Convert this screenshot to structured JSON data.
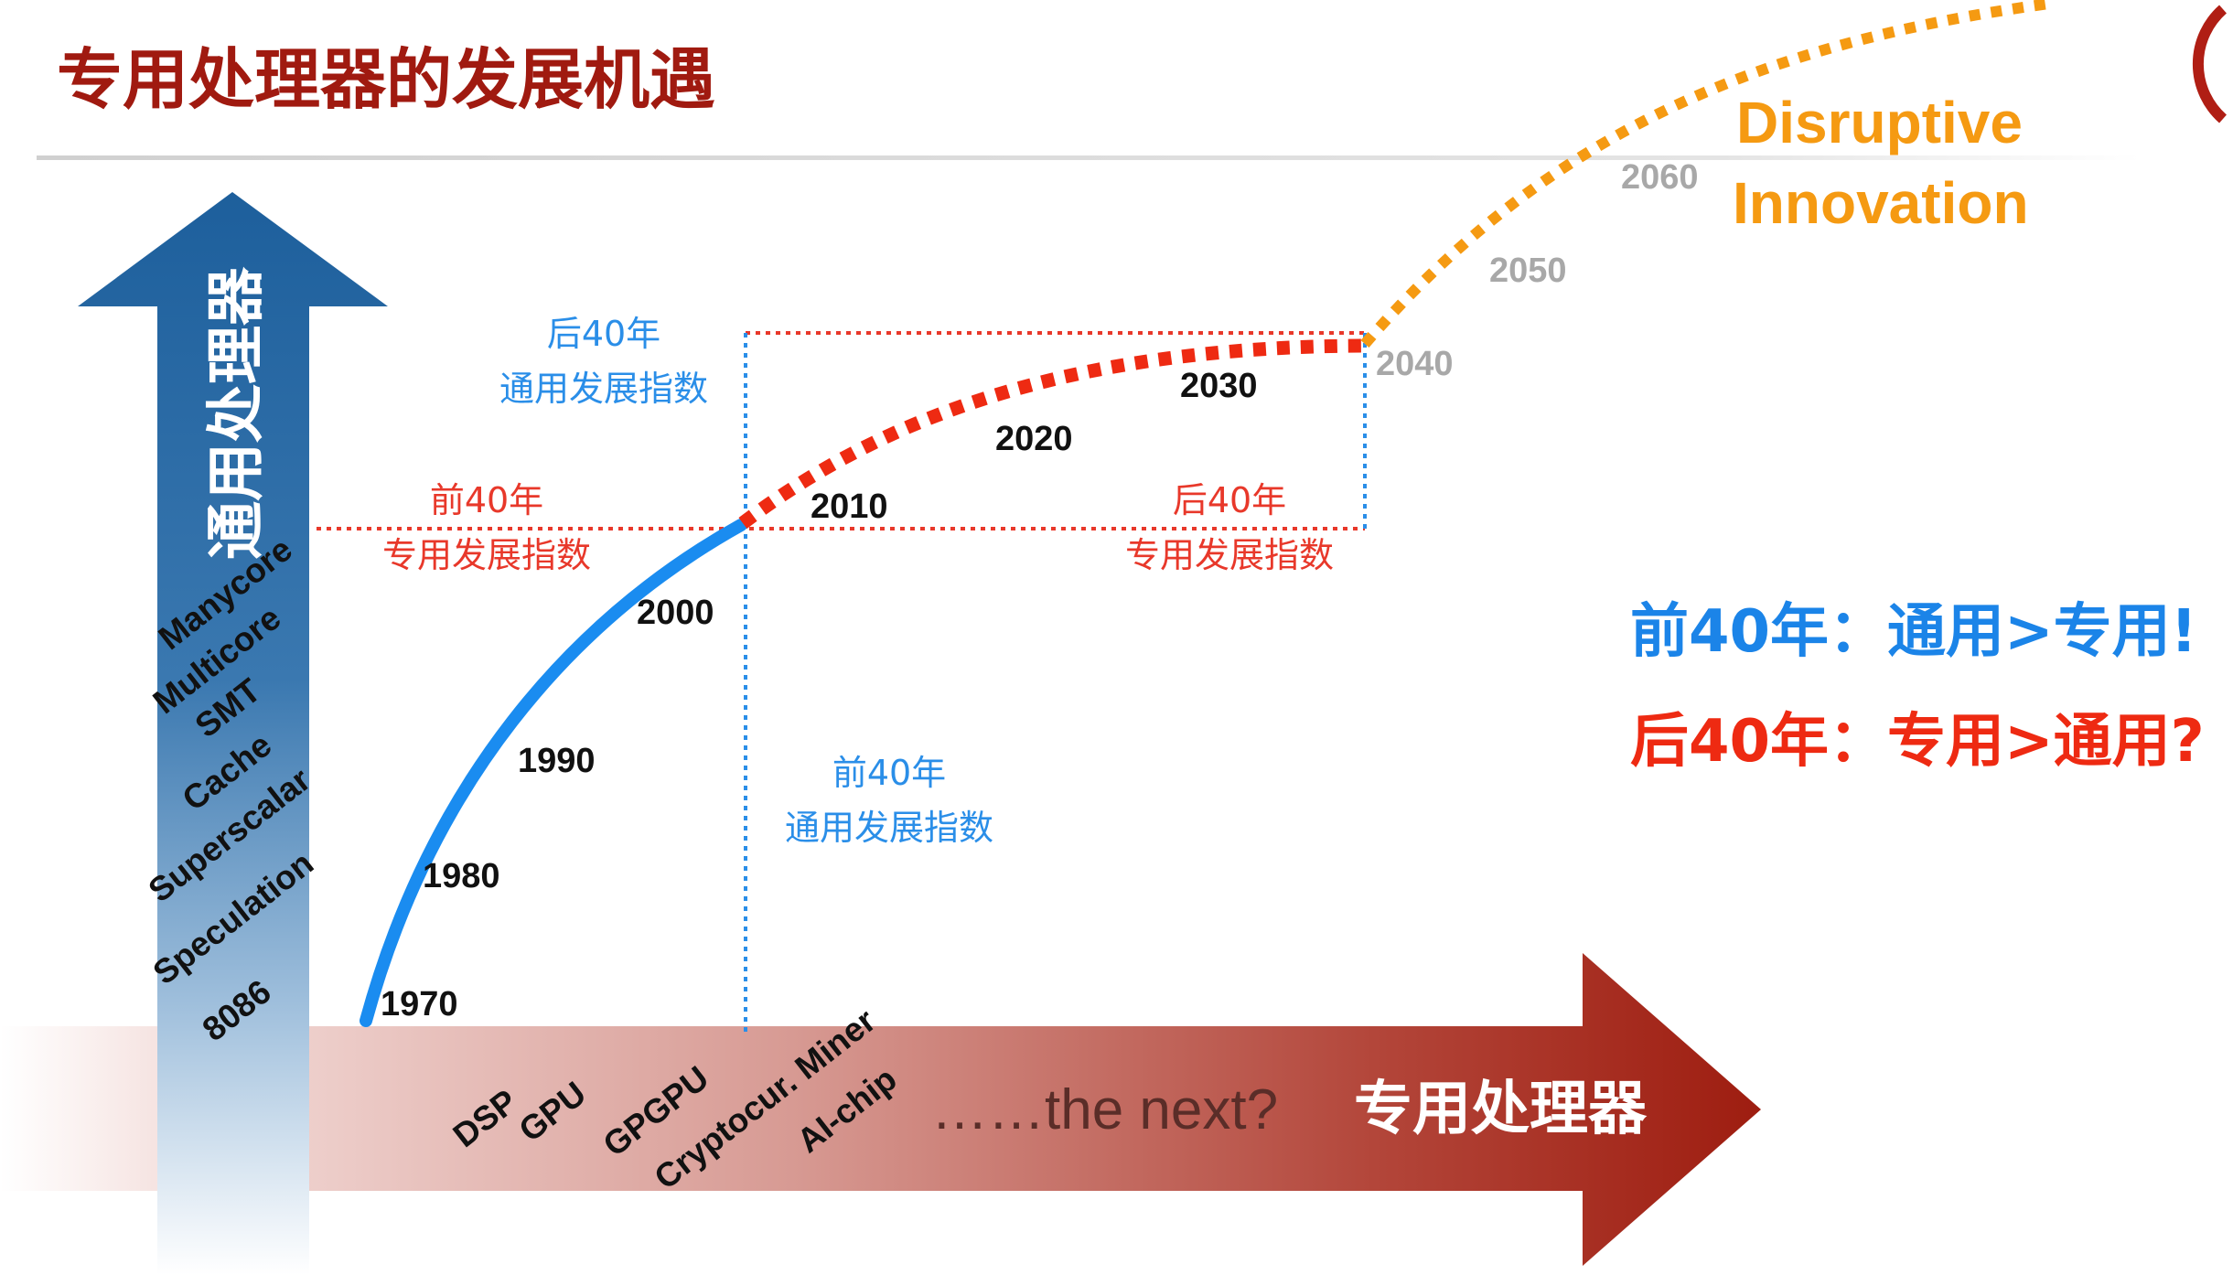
{
  "title": "专用处理器的发展机遇",
  "vertical_axis": {
    "label": "通用处理器",
    "items": [
      "Manycore",
      "Multicore",
      "SMT",
      "Cache",
      "Superscalar",
      "Speculation",
      "8086"
    ]
  },
  "horizontal_axis": {
    "label": "专用处理器",
    "items": [
      "DSP",
      "GPU",
      "GPGPU",
      "Cryptocur. Miner",
      "AI-chip"
    ],
    "next_text": "……the next?"
  },
  "timeline": {
    "past_years": [
      "1970",
      "1980",
      "1990",
      "2000"
    ],
    "middle_years": [
      "2010",
      "2020",
      "2030"
    ],
    "future_years": [
      "2040",
      "2050",
      "2060"
    ]
  },
  "annotations": {
    "upper_general": [
      "后40年",
      "通用发展指数"
    ],
    "left_special": [
      "前40年",
      "专用发展指数"
    ],
    "right_special": [
      "后40年",
      "专用发展指数"
    ],
    "lower_general": [
      "前40年",
      "通用发展指数"
    ]
  },
  "disruptive": [
    "Disruptive",
    "Innovation"
  ],
  "conclusions": {
    "past": "前40年：通用>专用!",
    "future": "后40年：专用>通用?"
  },
  "colors": {
    "title": "#a01a10",
    "blue_arrow": "#1d5f9c",
    "blue_curve": "#1a8cf0",
    "red_curve": "#ee2a12",
    "orange_curve": "#f59a12",
    "red_arrow": "#9e1d10",
    "dotted_red": "#e8382a",
    "dotted_blue": "#2a8ee8",
    "annot_blue": "#2a8ee8",
    "annot_red": "#e8382a",
    "disruptive": "#f59a12",
    "gray_year": "#a8a8a8",
    "conclusion_blue": "#1b84e8",
    "conclusion_red": "#ee2a12"
  }
}
